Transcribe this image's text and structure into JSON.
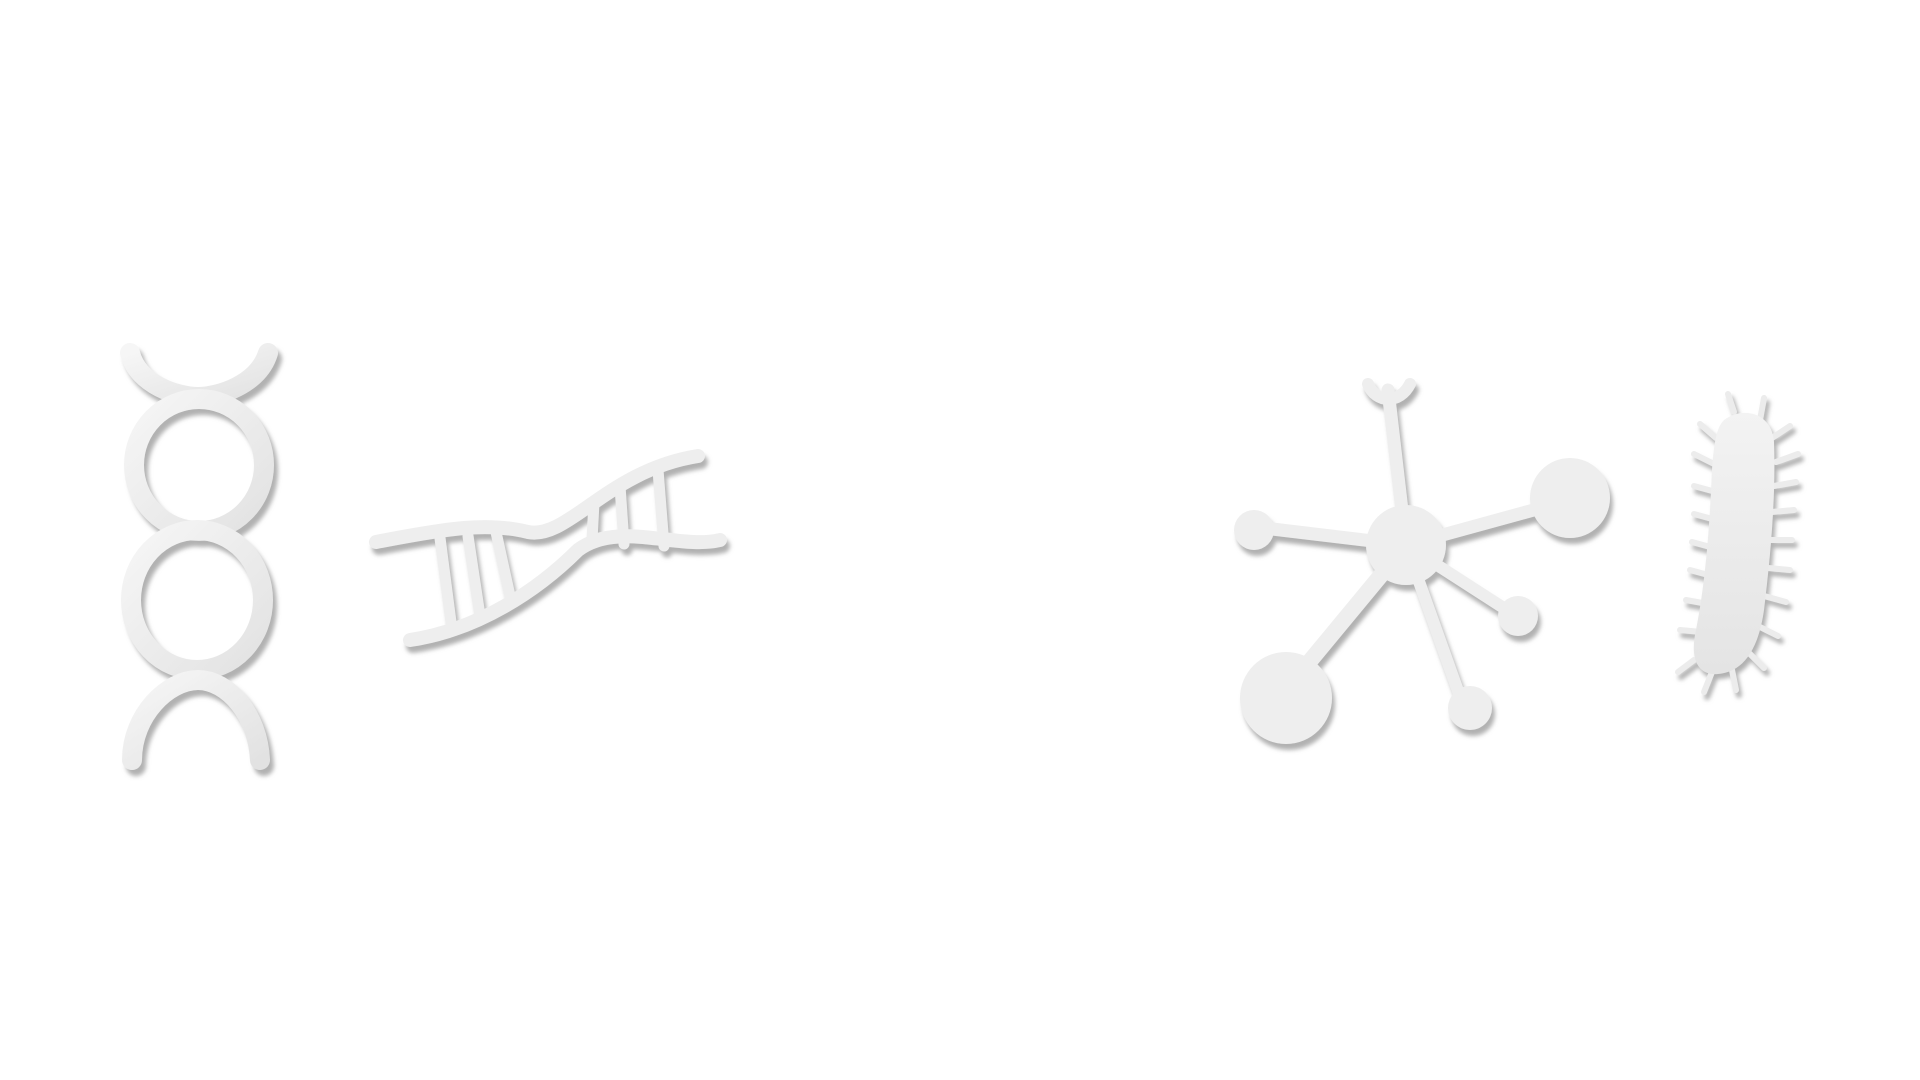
{
  "scene": {
    "background_color": "#ffffff",
    "shape_fill_color": "#eeeeee",
    "shape_shadow_color": "#bdbdbd"
  },
  "icons": [
    {
      "name": "double-helix-loop-icon"
    },
    {
      "name": "dna-strand-icon"
    },
    {
      "name": "molecule-network-icon"
    },
    {
      "name": "bacterium-icon"
    }
  ]
}
